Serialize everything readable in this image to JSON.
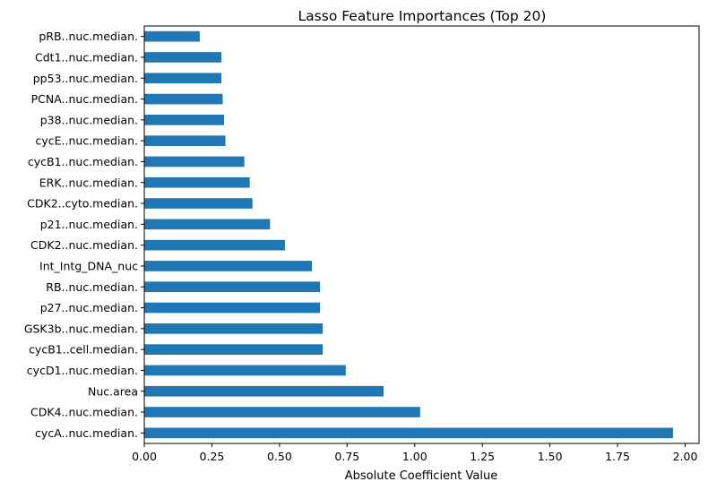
{
  "chart_data": {
    "type": "bar",
    "orientation": "horizontal",
    "title": "Lasso Feature Importances (Top 20)",
    "xlabel": "Absolute Coefficient Value",
    "ylabel": "",
    "xlim": [
      0,
      2.05
    ],
    "xticks": [
      "0.00",
      "0.25",
      "0.50",
      "0.75",
      "1.00",
      "1.25",
      "1.50",
      "1.75",
      "2.00"
    ],
    "grid": false,
    "bar_color": "#1f77b4",
    "categories": [
      "cycA..nuc.median.",
      "CDK4..nuc.median.",
      "Nuc.area",
      "cycD1..nuc.median.",
      "cycB1..cell.median.",
      "GSK3b..nuc.median.",
      "p27..nuc.median.",
      "RB..nuc.median.",
      "Int_Intg_DNA_nuc",
      "CDK2..nuc.median.",
      "p21..nuc.median.",
      "CDK2..cyto.median.",
      "ERK..nuc.median.",
      "cycB1..nuc.median.",
      "cycE..nuc.median.",
      "p38..nuc.median.",
      "PCNA..nuc.median.",
      "pp53..nuc.median.",
      "Cdt1..nuc.median.",
      "pRB..nuc.median."
    ],
    "values": [
      1.955,
      1.02,
      0.885,
      0.745,
      0.66,
      0.66,
      0.65,
      0.65,
      0.62,
      0.52,
      0.465,
      0.4,
      0.39,
      0.37,
      0.3,
      0.295,
      0.29,
      0.285,
      0.285,
      0.205
    ]
  }
}
